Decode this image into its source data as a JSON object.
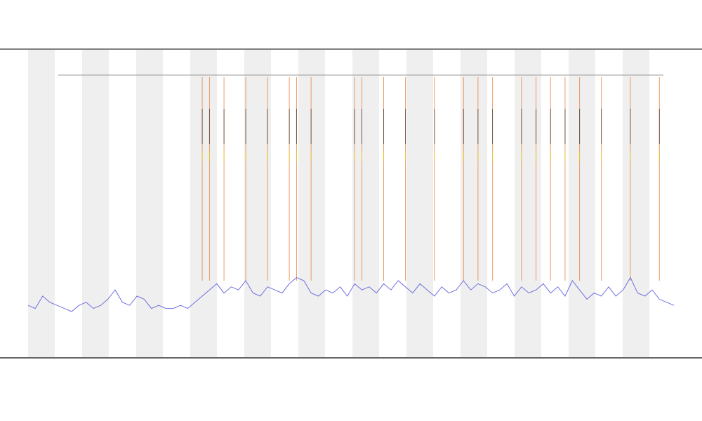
{
  "chart_data": {
    "type": "line",
    "x": [
      0,
      1,
      2,
      3,
      4,
      5,
      6,
      7,
      8,
      9,
      10,
      11,
      12,
      13,
      14,
      15,
      16,
      17,
      18,
      19,
      20,
      21,
      22,
      23,
      24,
      25,
      26,
      27,
      28,
      29,
      30,
      31,
      32,
      33,
      34,
      35,
      36,
      37,
      38,
      39,
      40,
      41,
      42,
      43,
      44,
      45,
      46,
      47,
      48,
      49,
      50,
      51,
      52,
      53,
      54,
      55,
      56,
      57,
      58,
      59,
      60,
      61,
      62,
      63,
      64,
      65,
      66,
      67,
      68,
      69,
      70,
      71,
      72,
      73,
      74,
      75,
      76,
      77,
      78,
      79,
      80,
      81,
      82,
      83,
      84,
      85,
      86,
      87,
      88,
      89
    ],
    "series": [
      {
        "color": "#6f6fe0",
        "values": [
          0.17,
          0.16,
          0.2,
          0.18,
          0.17,
          0.16,
          0.15,
          0.17,
          0.18,
          0.16,
          0.17,
          0.19,
          0.22,
          0.18,
          0.17,
          0.2,
          0.19,
          0.16,
          0.17,
          0.16,
          0.16,
          0.17,
          0.16,
          0.18,
          0.2,
          0.22,
          0.24,
          0.21,
          0.23,
          0.22,
          0.25,
          0.21,
          0.2,
          0.23,
          0.22,
          0.21,
          0.24,
          0.26,
          0.25,
          0.21,
          0.2,
          0.22,
          0.21,
          0.23,
          0.2,
          0.24,
          0.22,
          0.23,
          0.21,
          0.24,
          0.22,
          0.25,
          0.23,
          0.21,
          0.24,
          0.22,
          0.2,
          0.23,
          0.21,
          0.22,
          0.25,
          0.22,
          0.24,
          0.23,
          0.21,
          0.22,
          0.24,
          0.2,
          0.23,
          0.21,
          0.22,
          0.24,
          0.21,
          0.23,
          0.2,
          0.25,
          0.22,
          0.19,
          0.21,
          0.2,
          0.23,
          0.2,
          0.22,
          0.26,
          0.21,
          0.2,
          0.22,
          0.19,
          0.18,
          0.17
        ]
      }
    ],
    "events": [
      24,
      25,
      27,
      30,
      33,
      36,
      37,
      39,
      45,
      46,
      49,
      52,
      56,
      60,
      62,
      64,
      68,
      70,
      72,
      74,
      76,
      79,
      83,
      87
    ],
    "event_color": "#e8762c",
    "xlim": [
      0,
      89
    ],
    "ylim": [
      0,
      1
    ]
  }
}
